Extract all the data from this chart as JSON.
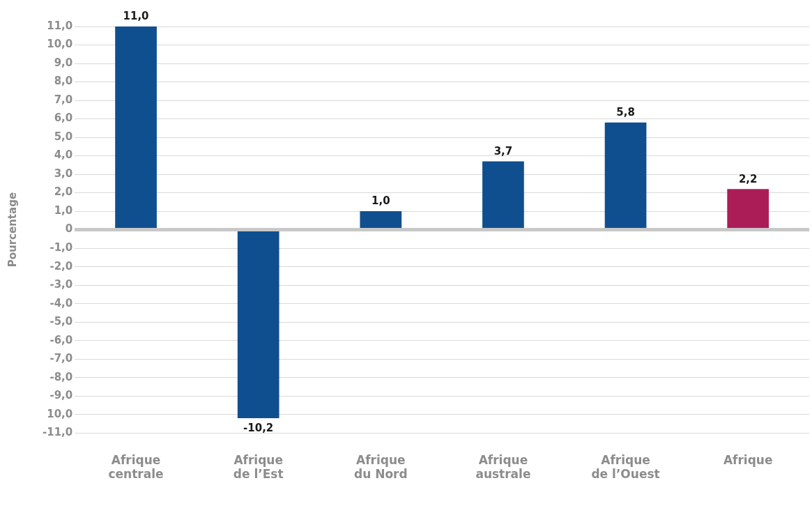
{
  "chart_data": {
    "type": "bar",
    "ylabel": "Pourcentage",
    "categories": [
      "Afrique centrale",
      "Afrique de l’Est",
      "Afrique du Nord",
      "Afrique australe",
      "Afrique de l’Ouest",
      "Afrique"
    ],
    "values": [
      11.0,
      -10.2,
      1.0,
      3.7,
      5.8,
      2.2
    ],
    "colors": [
      "#0f4f8f",
      "#0f4f8f",
      "#0f4f8f",
      "#0f4f8f",
      "#0f4f8f",
      "#ab1d57"
    ],
    "value_labels": [
      "11,0",
      "-10,2",
      "1,0",
      "3,7",
      "5,8",
      "2,2"
    ],
    "ylim": [
      -11,
      11
    ],
    "yticks": [
      {
        "value": -11,
        "label": "-11,0"
      },
      {
        "value": -10,
        "label": "10,0"
      },
      {
        "value": -9,
        "label": "-9,0"
      },
      {
        "value": -8,
        "label": "-8,0"
      },
      {
        "value": -7,
        "label": "-7,0"
      },
      {
        "value": -6,
        "label": "-6,0"
      },
      {
        "value": -5,
        "label": "-5,0"
      },
      {
        "value": -4,
        "label": "-4,0"
      },
      {
        "value": -3,
        "label": "-3,0"
      },
      {
        "value": -2,
        "label": "-2,0"
      },
      {
        "value": -1,
        "label": "-1,0"
      },
      0,
      {
        "value": 1,
        "label": "1,0"
      },
      {
        "value": 2,
        "label": "2,0"
      },
      {
        "value": 3,
        "label": "3,0"
      },
      {
        "value": 4,
        "label": "4,0"
      },
      {
        "value": 5,
        "label": "5,0"
      },
      {
        "value": 6,
        "label": "6,0"
      },
      {
        "value": 7,
        "label": "7,0"
      },
      {
        "value": 8,
        "label": "8,0"
      },
      {
        "value": 9,
        "label": "9,0"
      },
      {
        "value": 10,
        "label": "10,0"
      },
      {
        "value": 11,
        "label": "11,0"
      }
    ],
    "grid": "y",
    "legend": false
  }
}
